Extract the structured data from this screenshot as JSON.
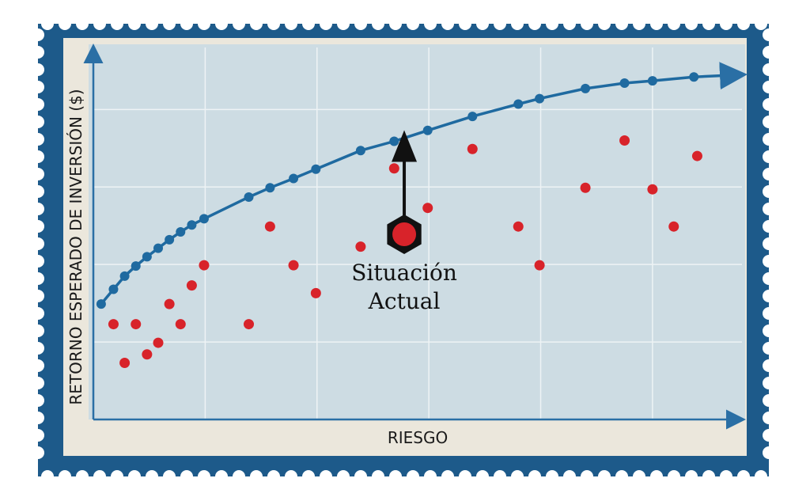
{
  "chart_data": {
    "type": "scatter",
    "x_label": "RIESGO",
    "y_label": "RETORNO ESPERADO DE INVERSIÓN ($)",
    "xlim": [
      0,
      5.8
    ],
    "ylim": [
      0,
      4.8
    ],
    "xticks": [
      1,
      2,
      3,
      4,
      5
    ],
    "yticks": [
      1,
      2,
      3,
      4
    ],
    "grid": true,
    "series": [
      {
        "color": "#1f6aa0",
        "line": true,
        "x": [
          0.07,
          0.18,
          0.28,
          0.38,
          0.48,
          0.58,
          0.68,
          0.78,
          0.88,
          0.99,
          1.39,
          1.58,
          1.79,
          1.99,
          2.39,
          2.69,
          2.99,
          3.39,
          3.8,
          3.99,
          4.4,
          4.75,
          5.0,
          5.37
        ],
        "values": [
          1.49,
          1.68,
          1.85,
          1.98,
          2.1,
          2.21,
          2.32,
          2.42,
          2.51,
          2.59,
          2.87,
          2.99,
          3.11,
          3.23,
          3.47,
          3.59,
          3.73,
          3.91,
          4.07,
          4.14,
          4.27,
          4.34,
          4.37,
          4.42
        ]
      },
      {
        "color": "#d8232a",
        "line": false,
        "x": [
          0.18,
          0.38,
          0.28,
          0.48,
          0.58,
          0.68,
          0.78,
          0.88,
          0.99,
          1.39,
          1.58,
          1.79,
          1.99,
          2.39,
          2.69,
          2.99,
          3.39,
          3.8,
          3.99,
          4.4,
          4.75,
          5.0,
          5.19,
          5.4
        ],
        "values": [
          1.23,
          1.23,
          0.73,
          0.84,
          0.99,
          1.49,
          1.23,
          1.73,
          1.99,
          1.23,
          2.49,
          1.99,
          1.63,
          2.23,
          3.24,
          2.73,
          3.49,
          2.49,
          1.99,
          2.99,
          3.6,
          2.97,
          2.49,
          3.4
        ]
      }
    ],
    "annotation": {
      "label": [
        "Situación",
        "Actual"
      ],
      "x": 2.78,
      "y": 2.39,
      "color": "#d8232a",
      "target_y": 3.59
    }
  }
}
